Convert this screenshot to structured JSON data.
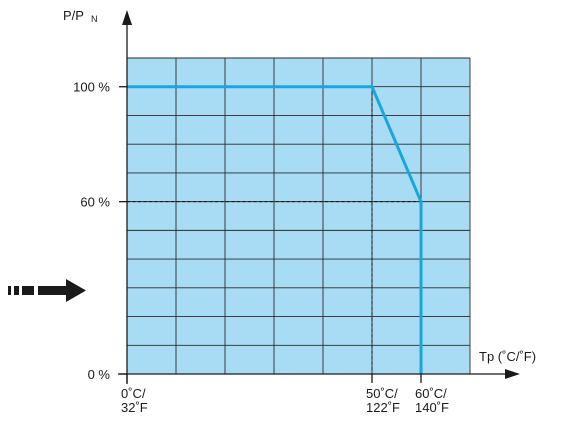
{
  "chart_data": {
    "type": "line",
    "title": "",
    "ylabel_main": "P/P",
    "ylabel_sub": "N",
    "xlabel": "Tp (˚C/˚F)",
    "x_unit": "°C",
    "xlim": [
      0,
      70
    ],
    "ylim": [
      0,
      110
    ],
    "grid": true,
    "y_ticks": [
      {
        "value": 100,
        "label": "100 %"
      },
      {
        "value": 60,
        "label": "60 %"
      },
      {
        "value": 0,
        "label": "0 %"
      }
    ],
    "x_ticks": [
      {
        "value": 0,
        "line1": "0˚C/",
        "line2": "32˚F"
      },
      {
        "value": 50,
        "line1": "50˚C/",
        "line2": "122˚F"
      },
      {
        "value": 60,
        "line1": "60˚C/",
        "line2": "140˚F"
      }
    ],
    "series": [
      {
        "x": [
          0,
          50,
          60,
          60
        ],
        "y": [
          100,
          100,
          60,
          0
        ]
      }
    ],
    "reference_lines": [
      {
        "x": [
          0,
          60
        ],
        "y": [
          60,
          60
        ]
      },
      {
        "x": [
          50,
          50
        ],
        "y": [
          100,
          0
        ]
      }
    ]
  },
  "colors": {
    "grid_fill": "#a8dcf4",
    "grid_line": "#2a2a2a",
    "curve": "#19a6e0",
    "axis": "#1a1a1a",
    "arrow": "#1a1a1a"
  },
  "icons": {
    "side_arrow": "dashed-right-arrow-icon"
  }
}
